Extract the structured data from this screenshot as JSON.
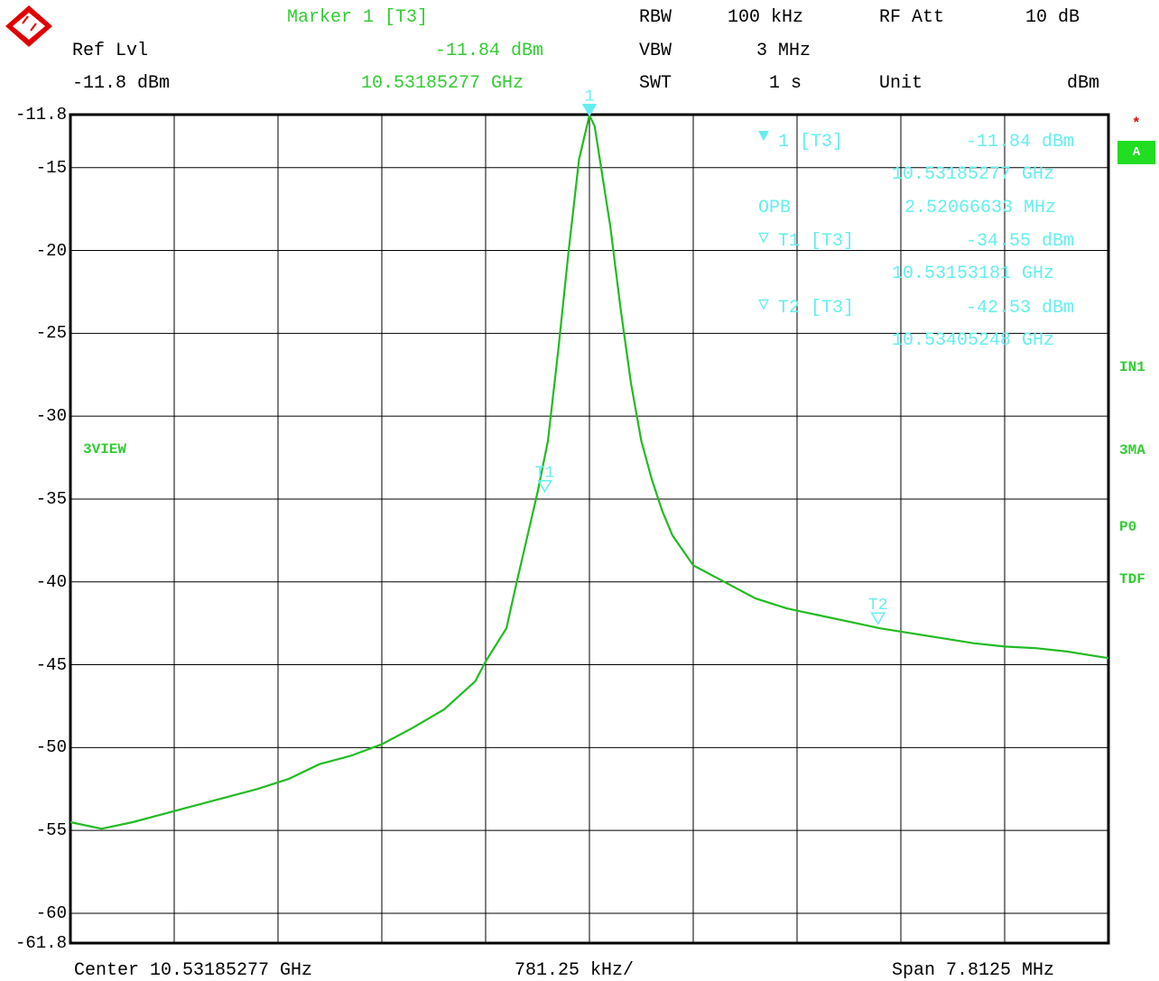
{
  "header": {
    "marker_title": "Marker 1 [T3]",
    "ref_lvl_label": "Ref Lvl",
    "ref_lvl_value": "-11.8 dBm",
    "marker_level": "-11.84 dBm",
    "marker_freq": "10.53185277 GHz",
    "rbw_label": "RBW",
    "rbw_value": "100 kHz",
    "vbw_label": "VBW",
    "vbw_value": "3 MHz",
    "swt_label": "SWT",
    "swt_value": "1 s",
    "rf_att_label": "RF Att",
    "rf_att_value": "10 dB",
    "unit_label": "Unit",
    "unit_value": "dBm"
  },
  "marker_table": {
    "m1_label": "1 [T3]",
    "m1_level": "-11.84 dBm",
    "m1_freq": "10.53185277 GHz",
    "obw_label": "OPB",
    "obw_value": "2.52066633 MHz",
    "t1_label": "T1 [T3]",
    "t1_level": "-34.55 dBm",
    "t1_freq": "10.53153181 GHz",
    "t2_label": "T2 [T3]",
    "t2_level": "-42.53 dBm",
    "t2_freq": "10.53405248 GHz"
  },
  "side_labels": {
    "trace_mode": "3VIEW",
    "star": "*",
    "a_box": "A",
    "in1": "IN1",
    "ma": "3MA",
    "p0": "P0",
    "tdf": "TDF"
  },
  "footer": {
    "center": "Center 10.53185277 GHz",
    "per_div": "781.25 kHz/",
    "span": "Span 7.8125 MHz"
  },
  "markers_on_plot": {
    "m1": "1",
    "t1": "T1",
    "t2": "T2"
  },
  "colors": {
    "trace": "#22bb22",
    "marker": "#66eeee",
    "grid": "#000000"
  },
  "chart_data": {
    "type": "line",
    "xlabel": "",
    "ylabel": "",
    "xlim": [
      0,
      10
    ],
    "ylim": [
      -61.8,
      -11.8
    ],
    "ytick_values": [
      -11.8,
      -15,
      -20,
      -25,
      -30,
      -35,
      -40,
      -45,
      -50,
      -55,
      -60,
      -61.8
    ],
    "ytick_labels": [
      "-11.8",
      "-15",
      "-20",
      "-25",
      "-30",
      "-35",
      "-40",
      "-45",
      "-50",
      "-55",
      "-60",
      "-61.8"
    ],
    "grid": true,
    "series": [
      {
        "x": [
          0,
          0.3,
          0.6,
          0.9,
          1.2,
          1.5,
          1.8,
          2.1,
          2.4,
          2.7,
          3.0,
          3.3,
          3.6,
          3.9,
          4.0,
          4.2,
          4.3,
          4.4,
          4.5,
          4.6,
          4.7,
          4.8,
          4.9,
          5.0,
          5.05,
          5.1,
          5.2,
          5.3,
          5.4,
          5.5,
          5.6,
          5.7,
          5.8,
          6.0,
          6.3,
          6.6,
          6.9,
          7.2,
          7.5,
          7.8,
          8.1,
          8.4,
          8.7,
          9.0,
          9.3,
          9.6,
          9.9,
          10.0
        ],
        "y": [
          -54.5,
          -54.9,
          -54.5,
          -54.0,
          -53.5,
          -53.0,
          -52.5,
          -51.9,
          -51.0,
          -50.5,
          -49.8,
          -48.8,
          -47.7,
          -46.0,
          -44.8,
          -42.8,
          -40.0,
          -37.3,
          -34.6,
          -31.5,
          -26.0,
          -20.0,
          -14.5,
          -11.84,
          -12.5,
          -14.5,
          -18.5,
          -23.5,
          -28.0,
          -31.5,
          -33.8,
          -35.7,
          -37.2,
          -39.0,
          -40.0,
          -41.0,
          -41.6,
          -42.0,
          -42.4,
          -42.8,
          -43.1,
          -43.4,
          -43.7,
          -43.9,
          -44.0,
          -44.2,
          -44.5,
          -44.6
        ]
      }
    ],
    "markers": [
      {
        "name": "1",
        "x": 5.0,
        "y": -11.84
      },
      {
        "name": "T1",
        "x": 4.57,
        "y": -34.55
      },
      {
        "name": "T2",
        "x": 7.78,
        "y": -42.53
      }
    ]
  }
}
